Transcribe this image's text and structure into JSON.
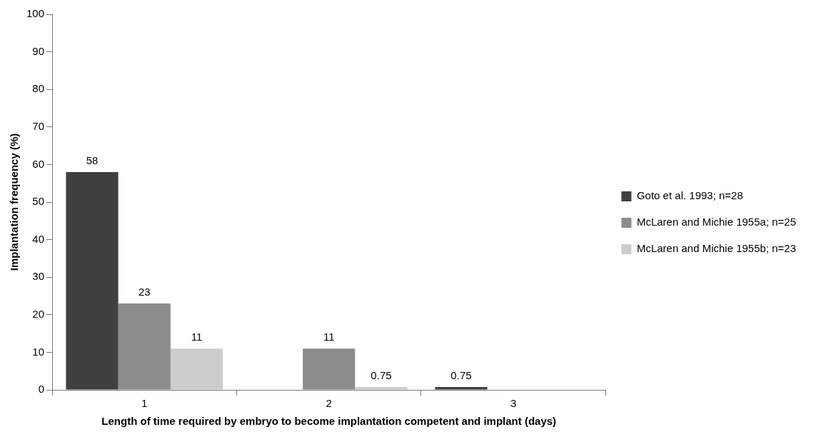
{
  "chart_data": {
    "type": "bar",
    "xlabel": "Length of time required by embryo to become implantation competent and implant (days)",
    "ylabel": "Implantation frequency (%)",
    "categories": [
      "1",
      "2",
      "3"
    ],
    "series": [
      {
        "name": "Goto et al. 1993; n=28",
        "color": "#404040",
        "values": [
          58,
          null,
          0.75
        ]
      },
      {
        "name": "McLaren and Michie 1955a; n=25",
        "color": "#8c8c8c",
        "values": [
          23,
          11,
          null
        ]
      },
      {
        "name": "McLaren and Michie 1955b; n=23",
        "color": "#cccccc",
        "values": [
          11,
          0.75,
          null
        ]
      }
    ],
    "ylim": [
      0,
      100
    ],
    "yticks": [
      0,
      10,
      20,
      30,
      40,
      50,
      60,
      70,
      80,
      90,
      100
    ],
    "grid": false,
    "legend": "right",
    "data_labels": true
  }
}
